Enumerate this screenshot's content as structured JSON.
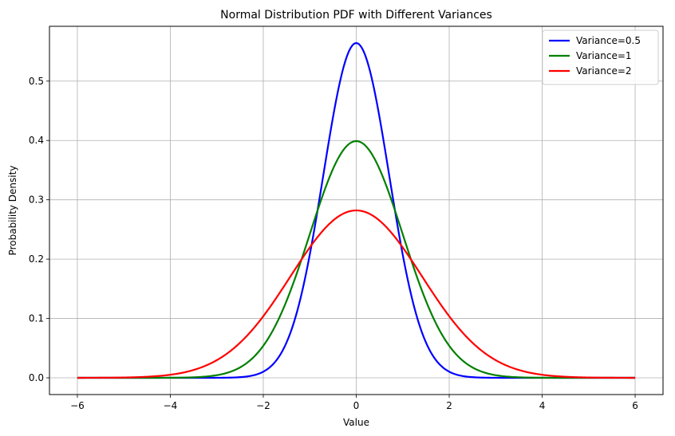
{
  "chart_data": {
    "type": "line",
    "title": "Normal Distribution PDF with Different Variances",
    "xlabel": "Value",
    "ylabel": "Probability Density",
    "xlim": [
      -6.6,
      6.6
    ],
    "ylim": [
      -0.0282,
      0.5924
    ],
    "xticks": [
      -6,
      -4,
      -2,
      0,
      2,
      4,
      6
    ],
    "xtick_labels": [
      "−6",
      "−4",
      "−2",
      "0",
      "2",
      "4",
      "6"
    ],
    "yticks": [
      0.0,
      0.1,
      0.2,
      0.3,
      0.4,
      0.5
    ],
    "ytick_labels": [
      "0.0",
      "0.1",
      "0.2",
      "0.3",
      "0.4",
      "0.5"
    ],
    "grid": true,
    "legend_position": "top-right",
    "x_range": [
      -6,
      6
    ],
    "series": [
      {
        "name": "Variance=0.5",
        "variance": 0.5,
        "mean": 0,
        "color": "#0000ff"
      },
      {
        "name": "Variance=1",
        "variance": 1,
        "mean": 0,
        "color": "#008000"
      },
      {
        "name": "Variance=2",
        "variance": 2,
        "mean": 0,
        "color": "#ff0000"
      }
    ]
  }
}
